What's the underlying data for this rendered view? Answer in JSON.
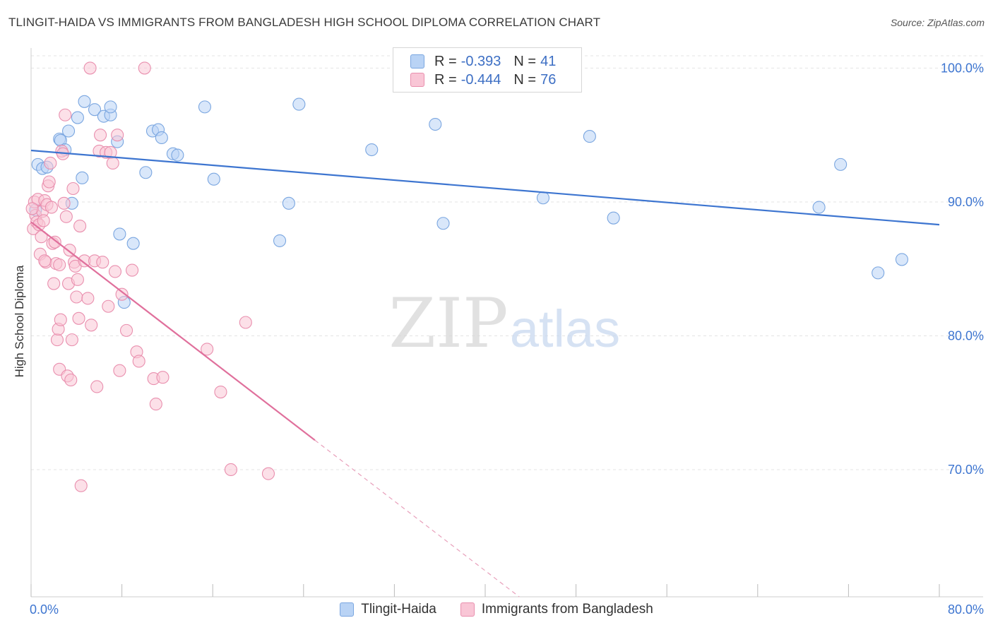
{
  "title": "TLINGIT-HAIDA VS IMMIGRANTS FROM BANGLADESH HIGH SCHOOL DIPLOMA CORRELATION CHART",
  "source": "Source: ZipAtlas.com",
  "watermark": {
    "zip": "ZIP",
    "atlas": "atlas"
  },
  "legend": {
    "r_label": "R =",
    "n_label": "N =",
    "rows": [
      {
        "r": "-0.393",
        "n": "41",
        "fill": "#b9d3f5",
        "stroke": "#7aa6e0"
      },
      {
        "r": "-0.444",
        "n": "76",
        "fill": "#f9c6d6",
        "stroke": "#e98fae"
      }
    ]
  },
  "bottom_legend": [
    {
      "label": "Tlingit-Haida",
      "fill": "#b9d3f5",
      "stroke": "#7aa6e0"
    },
    {
      "label": "Immigrants from Bangladesh",
      "fill": "#f9c6d6",
      "stroke": "#e98fae"
    }
  ],
  "chart_data": {
    "type": "scatter",
    "title": "TLINGIT-HAIDA VS IMMIGRANTS FROM BANGLADESH HIGH SCHOOL DIPLOMA CORRELATION CHART",
    "xlabel": "",
    "ylabel": "High School Diploma",
    "xlim": [
      0,
      80
    ],
    "ylim": [
      60.5,
      101.5
    ],
    "x_tick_labels": [
      "0.0%",
      "80.0%"
    ],
    "y_ticks": [
      70,
      80,
      90,
      100
    ],
    "y_tick_labels": [
      "70.0%",
      "80.0%",
      "90.0%",
      "100.0%"
    ],
    "grid": true,
    "legend_position": "top-center",
    "series": [
      {
        "name": "Tlingit-Haida",
        "color": "#7aa6e0",
        "fill": "#b9d3f5",
        "trend": {
          "x": [
            0,
            80
          ],
          "y": [
            93.85,
            88.3
          ],
          "color": "#3d75d0"
        },
        "points": [
          [
            0.6,
            92.8
          ],
          [
            1.0,
            92.5
          ],
          [
            1.4,
            92.6
          ],
          [
            2.5,
            94.7
          ],
          [
            2.6,
            94.6
          ],
          [
            3.0,
            93.9
          ],
          [
            3.3,
            95.3
          ],
          [
            3.6,
            89.9
          ],
          [
            4.1,
            96.3
          ],
          [
            4.5,
            91.8
          ],
          [
            4.7,
            97.5
          ],
          [
            5.6,
            96.9
          ],
          [
            6.4,
            96.4
          ],
          [
            7.0,
            96.5
          ],
          [
            7.0,
            97.1
          ],
          [
            7.6,
            94.5
          ],
          [
            7.8,
            87.6
          ],
          [
            8.2,
            82.5
          ],
          [
            9.0,
            86.9
          ],
          [
            10.1,
            92.2
          ],
          [
            10.7,
            95.3
          ],
          [
            11.2,
            95.4
          ],
          [
            11.5,
            94.8
          ],
          [
            12.5,
            93.6
          ],
          [
            12.9,
            93.5
          ],
          [
            15.3,
            97.1
          ],
          [
            16.1,
            91.7
          ],
          [
            21.9,
            87.1
          ],
          [
            22.7,
            89.9
          ],
          [
            23.6,
            97.3
          ],
          [
            30.0,
            93.9
          ],
          [
            35.6,
            95.8
          ],
          [
            36.3,
            88.4
          ],
          [
            45.1,
            90.3
          ],
          [
            49.2,
            94.9
          ],
          [
            51.3,
            88.8
          ],
          [
            69.4,
            89.6
          ],
          [
            71.3,
            92.8
          ],
          [
            74.6,
            84.7
          ],
          [
            76.7,
            85.7
          ],
          [
            0.4,
            89.4
          ]
        ]
      },
      {
        "name": "Immigrants from Bangladesh",
        "color": "#e98fae",
        "fill": "#f9c6d6",
        "trend": {
          "x": [
            0,
            25
          ],
          "y": [
            88.5,
            72.2
          ],
          "color": "#e0709c",
          "dashed_to": {
            "x": 43,
            "y": 60.5
          }
        },
        "points": [
          [
            0.2,
            88.0
          ],
          [
            0.3,
            90.0
          ],
          [
            0.4,
            89.0
          ],
          [
            0.5,
            88.5
          ],
          [
            0.6,
            90.2
          ],
          [
            0.7,
            88.3
          ],
          [
            0.8,
            86.1
          ],
          [
            0.9,
            87.4
          ],
          [
            1.0,
            89.3
          ],
          [
            1.1,
            88.6
          ],
          [
            1.2,
            90.1
          ],
          [
            1.3,
            85.5
          ],
          [
            1.4,
            89.8
          ],
          [
            1.5,
            91.2
          ],
          [
            1.6,
            91.5
          ],
          [
            1.7,
            92.9
          ],
          [
            1.8,
            89.6
          ],
          [
            1.9,
            86.9
          ],
          [
            2.0,
            83.9
          ],
          [
            2.1,
            87.0
          ],
          [
            2.2,
            85.4
          ],
          [
            2.3,
            79.7
          ],
          [
            2.4,
            80.5
          ],
          [
            2.5,
            77.5
          ],
          [
            2.6,
            81.2
          ],
          [
            2.7,
            93.8
          ],
          [
            2.8,
            93.6
          ],
          [
            2.9,
            89.9
          ],
          [
            3.0,
            96.5
          ],
          [
            3.1,
            88.9
          ],
          [
            3.2,
            77.0
          ],
          [
            3.3,
            83.9
          ],
          [
            3.4,
            86.4
          ],
          [
            3.5,
            76.7
          ],
          [
            3.6,
            79.7
          ],
          [
            3.7,
            91.0
          ],
          [
            3.8,
            85.5
          ],
          [
            3.9,
            85.2
          ],
          [
            4.0,
            82.9
          ],
          [
            4.1,
            84.2
          ],
          [
            4.2,
            81.3
          ],
          [
            4.3,
            88.2
          ],
          [
            4.4,
            68.8
          ],
          [
            4.7,
            85.6
          ],
          [
            5.0,
            82.8
          ],
          [
            5.3,
            80.8
          ],
          [
            5.6,
            85.6
          ],
          [
            5.8,
            76.2
          ],
          [
            6.0,
            93.8
          ],
          [
            6.1,
            95.0
          ],
          [
            6.3,
            85.5
          ],
          [
            6.6,
            93.7
          ],
          [
            6.8,
            82.2
          ],
          [
            7.0,
            93.7
          ],
          [
            7.2,
            92.9
          ],
          [
            7.4,
            84.8
          ],
          [
            7.6,
            95.0
          ],
          [
            7.8,
            77.4
          ],
          [
            8.0,
            83.1
          ],
          [
            8.4,
            80.4
          ],
          [
            8.9,
            84.9
          ],
          [
            9.3,
            78.8
          ],
          [
            9.5,
            78.1
          ],
          [
            10.0,
            100.0
          ],
          [
            10.8,
            76.8
          ],
          [
            11.0,
            74.9
          ],
          [
            11.6,
            76.9
          ],
          [
            15.5,
            79.0
          ],
          [
            16.7,
            75.8
          ],
          [
            17.6,
            70.0
          ],
          [
            18.9,
            81.0
          ],
          [
            20.9,
            69.7
          ],
          [
            5.2,
            100.0
          ],
          [
            0.1,
            89.5
          ],
          [
            1.2,
            85.6
          ],
          [
            2.5,
            85.3
          ]
        ]
      }
    ]
  }
}
